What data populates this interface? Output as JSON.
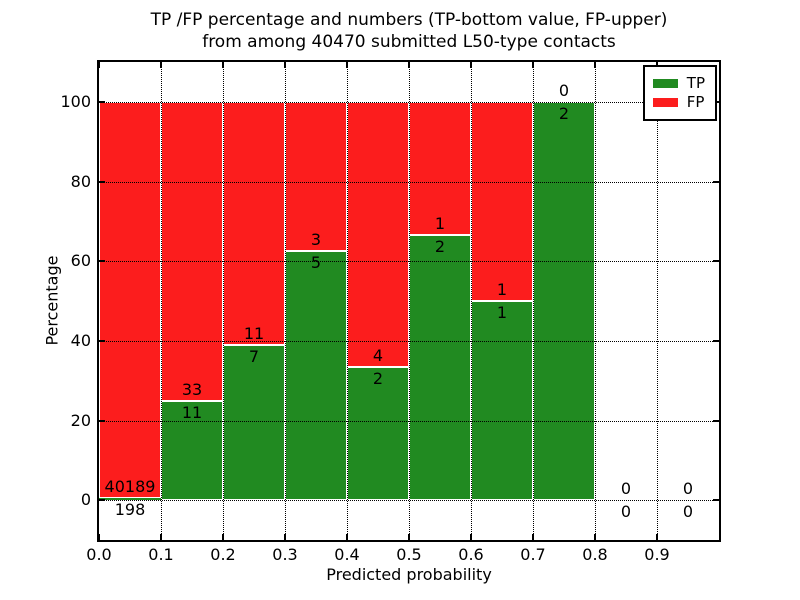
{
  "figure": {
    "title_line1": "TP /FP percentage and numbers (TP-bottom value, FP-upper)",
    "title_line2": "from among 40470 submitted L50-type contacts"
  },
  "colors": {
    "tp_green": "#218a21",
    "fp_red": "#fc1d1d",
    "axis": "#000000",
    "grid": "#000000",
    "bar_edge": "#ffffff",
    "background": "#ffffff"
  },
  "chart_data": {
    "type": "bar",
    "stacked_percentage": true,
    "title": "TP /FP percentage and numbers (TP-bottom value, FP-upper) from among 40470 submitted L50-type contacts",
    "xlabel": "Predicted probability",
    "ylabel": "Percentage",
    "xlim": [
      0.0,
      1.0
    ],
    "ylim": [
      -10,
      110
    ],
    "xtick_labels": [
      "0.0",
      "0.1",
      "0.2",
      "0.3",
      "0.4",
      "0.5",
      "0.6",
      "0.7",
      "0.8",
      "0.9"
    ],
    "ytick_values": [
      0,
      20,
      40,
      60,
      80,
      100
    ],
    "grid": "dotted",
    "legend": {
      "position": "upper right",
      "entries": [
        {
          "label": "TP",
          "color": "#218a21"
        },
        {
          "label": "FP",
          "color": "#fc1d1d"
        }
      ]
    },
    "bins": [
      {
        "range": [
          0.0,
          0.1
        ],
        "tp": 198,
        "fp": 40189,
        "tp_pct": 0.49
      },
      {
        "range": [
          0.1,
          0.2
        ],
        "tp": 11,
        "fp": 33,
        "tp_pct": 25.0
      },
      {
        "range": [
          0.2,
          0.3
        ],
        "tp": 7,
        "fp": 11,
        "tp_pct": 38.89
      },
      {
        "range": [
          0.3,
          0.4
        ],
        "tp": 5,
        "fp": 3,
        "tp_pct": 62.5
      },
      {
        "range": [
          0.4,
          0.5
        ],
        "tp": 2,
        "fp": 4,
        "tp_pct": 33.33
      },
      {
        "range": [
          0.5,
          0.6
        ],
        "tp": 2,
        "fp": 1,
        "tp_pct": 66.67
      },
      {
        "range": [
          0.6,
          0.7
        ],
        "tp": 1,
        "fp": 1,
        "tp_pct": 50.0
      },
      {
        "range": [
          0.7,
          0.8
        ],
        "tp": 2,
        "fp": 0,
        "tp_pct": 100.0
      },
      {
        "range": [
          0.8,
          0.9
        ],
        "tp": 0,
        "fp": 0,
        "tp_pct": 0.0
      },
      {
        "range": [
          0.9,
          1.0
        ],
        "tp": 0,
        "fp": 0,
        "tp_pct": 0.0
      }
    ]
  }
}
